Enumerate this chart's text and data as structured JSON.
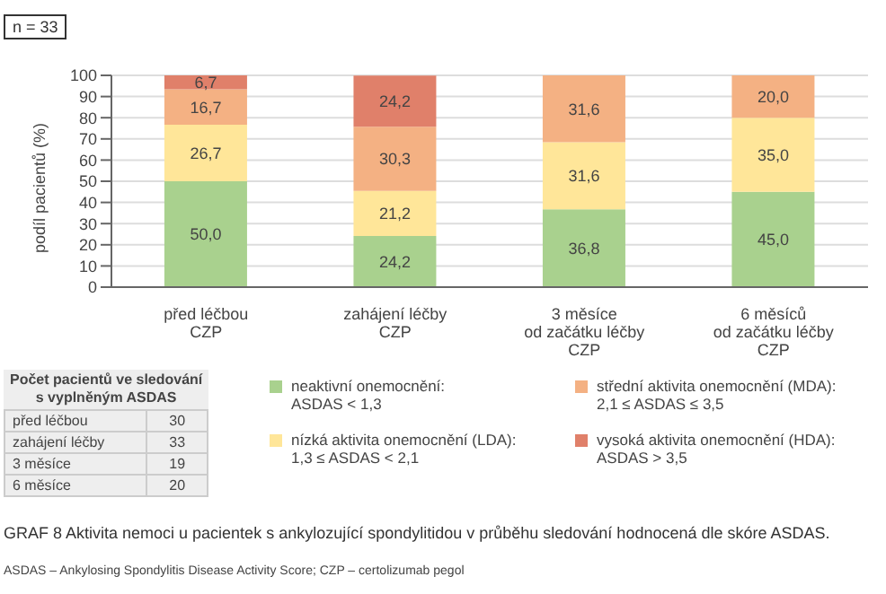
{
  "chart_data": {
    "type": "bar",
    "stacked": true,
    "title": "GRAF 8 Aktivita nemoci u pacientek s ankylozující spondylitidou v průběhu sledování hodnocená dle skóre ASDAS.",
    "ylabel": "podíl pacientů (%)",
    "categories": [
      "před léčbou\nCZP",
      "zahájení léčby\nCZP",
      "3 měsíce\nod začátku léčby\nCZP",
      "6 měsíců\nod začátku léčby\nCZP"
    ],
    "series": [
      {
        "name": "neaktivní onemocnění:\nASDAS < 1,3",
        "color": "#a9d18e",
        "values": [
          50.0,
          24.2,
          36.8,
          45.0
        ],
        "value_labels": [
          "50,0",
          "24,2",
          "36,8",
          "45,0"
        ]
      },
      {
        "name": "nízká aktivita onemocnění (LDA):\n1,3 ≤ ASDAS < 2,1",
        "color": "#ffe699",
        "values": [
          26.7,
          21.2,
          31.6,
          35.0
        ],
        "value_labels": [
          "26,7",
          "21,2",
          "31,6",
          "35,0"
        ]
      },
      {
        "name": "střední aktivita onemocnění (MDA):\n2,1 ≤ ASDAS ≤ 3,5",
        "color": "#f4b183",
        "values": [
          16.7,
          30.3,
          31.6,
          20.0
        ],
        "value_labels": [
          "16,7",
          "30,3",
          "31,6",
          "20,0"
        ]
      },
      {
        "name": "vysoká aktivita onemocnění (HDA):\nASDAS > 3,5",
        "color": "#e0806a",
        "values": [
          6.7,
          24.2,
          null,
          null
        ],
        "value_labels": [
          "6,7",
          "24,2",
          null,
          null
        ]
      }
    ],
    "ylim": [
      0,
      100
    ],
    "yticks": [
      0,
      10,
      20,
      30,
      40,
      50,
      60,
      70,
      80,
      90,
      100
    ],
    "grid": "y",
    "legend": "bottom",
    "annotations": [
      "n = 33",
      "Počet pacientů ve sledování\ns vyplněným ASDAS",
      "před léčbou\t30",
      "zahájení léčby\t33",
      "3 měsíce\t19",
      "6 měsíce\t20",
      "ASDAS – Ankylosing Spondylitis Disease Activity Score; CZP – certolizumab pegol"
    ]
  }
}
